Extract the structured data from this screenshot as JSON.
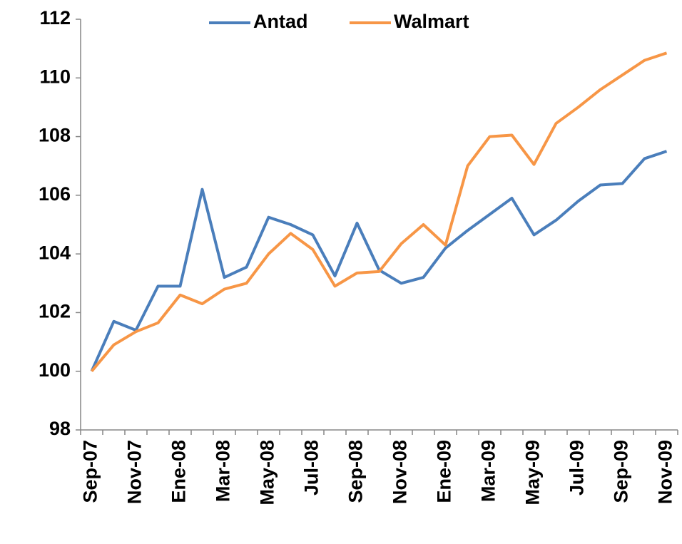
{
  "chart_data": {
    "type": "line",
    "categories": [
      "Sep-07",
      null,
      "Nov-07",
      null,
      "Ene-08",
      null,
      "Mar-08",
      null,
      "May-08",
      null,
      "Jul-08",
      null,
      "Sep-08",
      null,
      "Nov-08",
      null,
      "Ene-09",
      null,
      "Mar-09",
      null,
      "May-09",
      null,
      "Jul-09",
      null,
      "Sep-09",
      null,
      "Nov-09"
    ],
    "series": [
      {
        "name": "Antad",
        "color": "#4a7ebb",
        "values": [
          100,
          101.7,
          101.4,
          102.9,
          102.9,
          106.2,
          103.2,
          103.55,
          105.25,
          105.0,
          104.65,
          103.25,
          105.05,
          103.45,
          103.0,
          103.2,
          104.2,
          104.8,
          105.35,
          105.9,
          104.65,
          105.15,
          105.8,
          106.35,
          106.4,
          107.25,
          107.5
        ]
      },
      {
        "name": "Walmart",
        "color": "#f79646",
        "values": [
          100,
          100.9,
          101.35,
          101.65,
          102.6,
          102.3,
          102.8,
          103.0,
          104.0,
          104.7,
          104.15,
          102.9,
          103.35,
          103.4,
          104.35,
          105.0,
          104.3,
          107.0,
          108.0,
          108.05,
          107.05,
          108.45,
          109.0,
          109.6,
          110.1,
          110.6,
          110.85
        ]
      }
    ],
    "ylim": [
      98,
      112
    ],
    "yticks": [
      98,
      100,
      102,
      104,
      106,
      108,
      110,
      112
    ],
    "legend": "top",
    "grid": false
  }
}
